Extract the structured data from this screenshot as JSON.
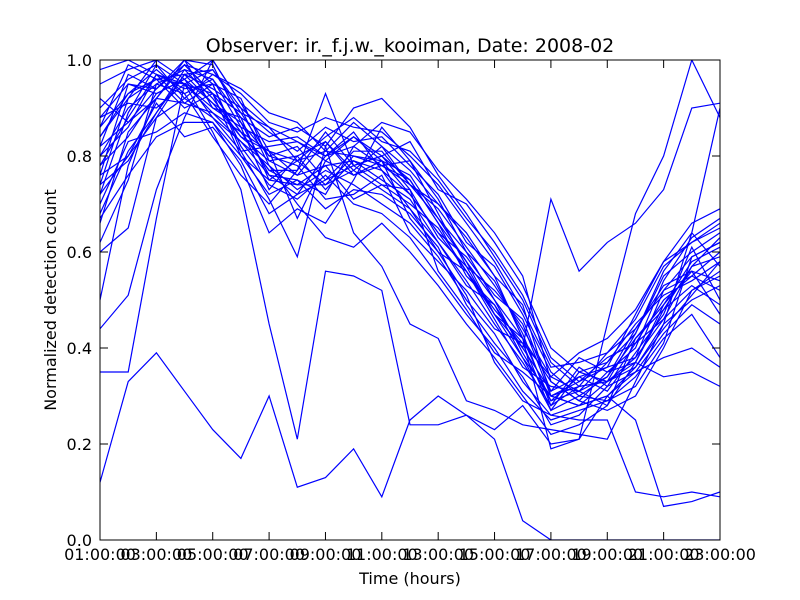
{
  "chart_data": {
    "type": "line",
    "title": "Observer: ir._f.j.w._kooiman, Date: 2008-02",
    "xlabel": "Time (hours)",
    "ylabel": "Normalized detection count",
    "x": [
      1,
      2,
      3,
      4,
      5,
      6,
      7,
      8,
      9,
      10,
      11,
      12,
      13,
      14,
      15,
      16,
      17,
      18,
      19,
      20,
      21,
      22,
      23
    ],
    "x_ticks": [
      1,
      3,
      5,
      7,
      9,
      11,
      13,
      15,
      17,
      19,
      21,
      23
    ],
    "x_tick_labels": [
      "01:00:00",
      "03:00:00",
      "05:00:00",
      "07:00:00",
      "09:00:00",
      "11:00:00",
      "13:00:00",
      "15:00:00",
      "17:00:00",
      "19:00:00",
      "21:00:00",
      "23:00:00"
    ],
    "y_ticks": [
      0.0,
      0.2,
      0.4,
      0.6,
      0.8,
      1.0
    ],
    "y_tick_labels": [
      "0.0",
      "0.2",
      "0.4",
      "0.6",
      "0.8",
      "1.0"
    ],
    "xlim": [
      1,
      23
    ],
    "ylim": [
      0,
      1
    ],
    "grid": false,
    "line_color": "#0000ff",
    "series": [
      {
        "values": [
          0.12,
          0.33,
          0.39,
          0.31,
          0.23,
          0.17,
          0.3,
          0.11,
          0.13,
          0.19,
          0.09,
          0.25,
          0.3,
          0.26,
          0.21,
          0.04,
          0.0,
          0.0,
          0.0,
          0.0,
          0.0,
          0.0,
          0.0
        ]
      },
      {
        "values": [
          0.35,
          0.35,
          0.67,
          0.95,
          0.85,
          0.73,
          0.45,
          0.21,
          0.56,
          0.55,
          0.52,
          0.24,
          0.24,
          0.26,
          0.23,
          0.28,
          0.2,
          0.21,
          0.3,
          0.25,
          0.07,
          0.08,
          0.1
        ]
      },
      {
        "values": [
          0.44,
          0.51,
          0.73,
          0.88,
          1.0,
          0.91,
          0.81,
          0.67,
          0.79,
          0.76,
          0.79,
          0.67,
          0.6,
          0.51,
          0.37,
          0.29,
          0.26,
          0.25,
          0.25,
          0.1,
          0.09,
          0.1,
          0.09
        ]
      },
      {
        "values": [
          0.5,
          0.78,
          0.92,
          1.0,
          0.95,
          0.81,
          0.71,
          0.59,
          0.82,
          0.64,
          0.57,
          0.45,
          0.42,
          0.29,
          0.27,
          0.24,
          0.23,
          0.22,
          0.21,
          0.33,
          0.45,
          0.64,
          0.9
        ]
      },
      {
        "values": [
          0.6,
          0.65,
          0.88,
          0.97,
          0.91,
          0.87,
          0.8,
          0.78,
          0.71,
          0.72,
          0.76,
          0.64,
          0.58,
          0.52,
          0.44,
          0.41,
          0.27,
          0.3,
          0.29,
          0.32,
          0.41,
          0.59,
          0.62
        ]
      },
      {
        "values": [
          0.66,
          0.85,
          0.92,
          0.99,
          0.93,
          0.85,
          0.77,
          0.77,
          0.85,
          0.78,
          0.74,
          0.73,
          0.56,
          0.48,
          0.39,
          0.35,
          0.3,
          0.32,
          0.33,
          0.38,
          0.52,
          0.55,
          0.52
        ]
      },
      {
        "values": [
          0.72,
          0.89,
          0.99,
          0.95,
          0.98,
          0.89,
          0.8,
          0.82,
          0.75,
          0.81,
          0.81,
          0.74,
          0.69,
          0.61,
          0.53,
          0.44,
          0.34,
          0.31,
          0.28,
          0.42,
          0.48,
          0.57,
          0.59
        ]
      },
      {
        "values": [
          0.74,
          0.92,
          1.0,
          1.0,
          0.99,
          0.87,
          0.76,
          0.75,
          0.72,
          0.82,
          0.78,
          0.75,
          0.66,
          0.55,
          0.49,
          0.4,
          0.31,
          0.38,
          0.35,
          0.4,
          0.54,
          0.63,
          0.67
        ]
      },
      {
        "values": [
          0.76,
          0.95,
          0.93,
          0.96,
          0.88,
          0.81,
          0.82,
          0.83,
          0.79,
          0.84,
          0.8,
          0.73,
          0.63,
          0.57,
          0.52,
          0.45,
          0.3,
          0.33,
          0.38,
          0.41,
          0.46,
          0.52,
          0.56
        ]
      },
      {
        "values": [
          0.78,
          0.88,
          0.97,
          0.91,
          0.95,
          0.92,
          0.79,
          0.8,
          0.83,
          0.77,
          0.82,
          0.77,
          0.7,
          0.64,
          0.55,
          0.42,
          0.33,
          0.29,
          0.35,
          0.37,
          0.49,
          0.58,
          0.61
        ]
      },
      {
        "values": [
          0.8,
          0.9,
          0.95,
          0.98,
          0.92,
          0.84,
          0.81,
          0.76,
          0.78,
          0.79,
          0.75,
          0.71,
          0.62,
          0.53,
          0.49,
          0.38,
          0.27,
          0.35,
          0.33,
          0.43,
          0.55,
          0.6,
          0.64
        ]
      },
      {
        "values": [
          0.82,
          0.97,
          0.94,
          1.0,
          0.9,
          0.86,
          0.83,
          0.84,
          0.8,
          0.85,
          0.77,
          0.69,
          0.6,
          0.56,
          0.46,
          0.36,
          0.32,
          0.31,
          0.37,
          0.45,
          0.51,
          0.54,
          0.58
        ]
      },
      {
        "values": [
          0.84,
          0.93,
          0.98,
          0.93,
          0.96,
          0.88,
          0.75,
          0.79,
          0.74,
          0.8,
          0.79,
          0.76,
          0.67,
          0.58,
          0.5,
          0.39,
          0.29,
          0.34,
          0.31,
          0.39,
          0.47,
          0.61,
          0.5
        ]
      },
      {
        "values": [
          0.86,
          0.99,
          0.96,
          0.97,
          0.94,
          0.9,
          0.85,
          0.81,
          0.86,
          0.83,
          0.84,
          0.78,
          0.72,
          0.62,
          0.57,
          0.47,
          0.35,
          0.3,
          0.34,
          0.44,
          0.53,
          0.56,
          0.47
        ]
      },
      {
        "values": [
          0.88,
          0.91,
          0.9,
          0.95,
          0.89,
          0.83,
          0.78,
          0.73,
          0.77,
          0.74,
          0.7,
          0.66,
          0.59,
          0.5,
          0.43,
          0.33,
          0.26,
          0.28,
          0.3,
          0.36,
          0.45,
          0.5,
          0.53
        ]
      },
      {
        "values": [
          0.9,
          0.96,
          0.99,
          0.92,
          0.97,
          0.93,
          0.87,
          0.85,
          0.88,
          0.86,
          0.85,
          0.8,
          0.74,
          0.66,
          0.58,
          0.48,
          0.36,
          0.37,
          0.39,
          0.46,
          0.57,
          0.62,
          0.65
        ]
      },
      {
        "values": [
          0.92,
          0.87,
          0.94,
          0.99,
          0.93,
          0.8,
          0.72,
          0.75,
          0.69,
          0.73,
          0.72,
          0.68,
          0.61,
          0.49,
          0.41,
          0.34,
          0.24,
          0.26,
          0.32,
          0.35,
          0.43,
          0.49,
          0.45
        ]
      },
      {
        "values": [
          0.95,
          0.98,
          1.0,
          0.96,
          1.0,
          0.91,
          0.86,
          0.79,
          0.84,
          0.88,
          0.83,
          0.81,
          0.75,
          0.67,
          0.6,
          0.51,
          0.38,
          0.33,
          0.36,
          0.47,
          0.58,
          0.66,
          0.69
        ]
      },
      {
        "values": [
          0.98,
          1.0,
          0.97,
          0.94,
          0.95,
          0.82,
          0.74,
          0.71,
          0.76,
          0.7,
          0.68,
          0.63,
          0.55,
          0.47,
          0.4,
          0.31,
          0.25,
          0.27,
          0.29,
          0.34,
          0.42,
          0.47,
          0.38
        ]
      },
      {
        "values": [
          0.7,
          0.83,
          0.85,
          0.89,
          0.87,
          0.78,
          0.64,
          0.69,
          0.66,
          0.75,
          0.86,
          0.79,
          0.71,
          0.6,
          0.54,
          0.43,
          0.28,
          0.36,
          0.32,
          0.41,
          0.5,
          0.55,
          0.6
        ]
      },
      {
        "values": [
          0.62,
          0.75,
          0.95,
          0.93,
          0.84,
          0.76,
          0.7,
          0.77,
          0.93,
          0.78,
          0.8,
          0.83,
          0.73,
          0.7,
          0.62,
          0.53,
          0.4,
          0.35,
          0.37,
          0.43,
          0.56,
          0.64,
          0.57
        ]
      },
      {
        "values": [
          0.76,
          0.8,
          0.91,
          0.84,
          0.86,
          0.79,
          0.68,
          0.72,
          0.8,
          0.82,
          0.87,
          0.85,
          0.77,
          0.71,
          0.64,
          0.55,
          0.33,
          0.29,
          0.27,
          0.3,
          0.4,
          0.52,
          0.55
        ]
      },
      {
        "values": [
          0.8,
          0.86,
          0.97,
          0.95,
          0.9,
          0.88,
          0.84,
          0.86,
          0.82,
          0.9,
          0.92,
          0.86,
          0.76,
          0.68,
          0.59,
          0.5,
          0.37,
          0.32,
          0.39,
          0.44,
          0.52,
          0.59,
          0.62
        ]
      },
      {
        "values": [
          0.74,
          0.79,
          0.89,
          0.97,
          0.98,
          0.9,
          0.78,
          0.7,
          0.63,
          0.61,
          0.66,
          0.6,
          0.53,
          0.45,
          0.38,
          0.3,
          0.22,
          0.24,
          0.28,
          0.37,
          0.48,
          0.53,
          0.49
        ]
      },
      {
        "values": [
          0.84,
          0.92,
          0.96,
          0.9,
          0.93,
          0.85,
          0.77,
          0.74,
          0.78,
          0.71,
          0.74,
          0.7,
          0.65,
          0.56,
          0.48,
          0.41,
          0.34,
          0.39,
          0.42,
          0.48,
          0.58,
          0.62,
          0.66
        ]
      },
      {
        "values": [
          0.68,
          0.81,
          0.89,
          0.98,
          0.96,
          0.86,
          0.73,
          0.8,
          0.73,
          0.79,
          0.77,
          0.72,
          0.64,
          0.59,
          0.51,
          0.46,
          0.31,
          0.34,
          0.36,
          0.38,
          0.46,
          0.57,
          0.63
        ]
      },
      {
        "values": [
          0.88,
          0.95,
          0.94,
          0.99,
          0.97,
          0.94,
          0.89,
          0.87,
          0.81,
          0.87,
          0.82,
          0.74,
          0.7,
          0.63,
          0.55,
          0.49,
          0.3,
          0.28,
          0.33,
          0.36,
          0.44,
          0.51,
          0.58
        ]
      },
      {
        "values": [
          0.78,
          0.84,
          0.93,
          0.96,
          0.91,
          0.84,
          0.79,
          0.76,
          0.83,
          0.76,
          0.78,
          0.79,
          0.68,
          0.57,
          0.47,
          0.42,
          0.29,
          0.31,
          0.34,
          0.42,
          0.49,
          0.56,
          0.54
        ]
      },
      {
        "values": [
          0.72,
          0.8,
          0.88,
          0.92,
          0.88,
          0.83,
          0.76,
          0.72,
          0.75,
          0.78,
          0.8,
          0.75,
          0.66,
          0.58,
          0.47,
          0.4,
          0.71,
          0.56,
          0.62,
          0.66,
          0.73,
          0.9,
          0.91
        ]
      },
      {
        "values": [
          0.82,
          0.87,
          0.92,
          0.91,
          0.89,
          0.85,
          0.81,
          0.79,
          0.81,
          0.8,
          0.78,
          0.74,
          0.67,
          0.6,
          0.5,
          0.42,
          0.19,
          0.21,
          0.45,
          0.68,
          0.8,
          1.0,
          0.88
        ]
      },
      {
        "values": [
          0.67,
          0.76,
          0.84,
          0.87,
          0.87,
          0.8,
          0.75,
          0.74,
          0.74,
          0.77,
          0.73,
          0.69,
          0.62,
          0.54,
          0.45,
          0.37,
          0.28,
          0.32,
          0.33,
          0.37,
          0.34,
          0.35,
          0.32
        ]
      },
      {
        "values": [
          0.86,
          0.93,
          0.96,
          0.95,
          0.93,
          0.89,
          0.86,
          0.83,
          0.8,
          0.84,
          0.79,
          0.72,
          0.64,
          0.56,
          0.47,
          0.38,
          0.3,
          0.28,
          0.3,
          0.35,
          0.38,
          0.4,
          0.36
        ]
      }
    ]
  }
}
